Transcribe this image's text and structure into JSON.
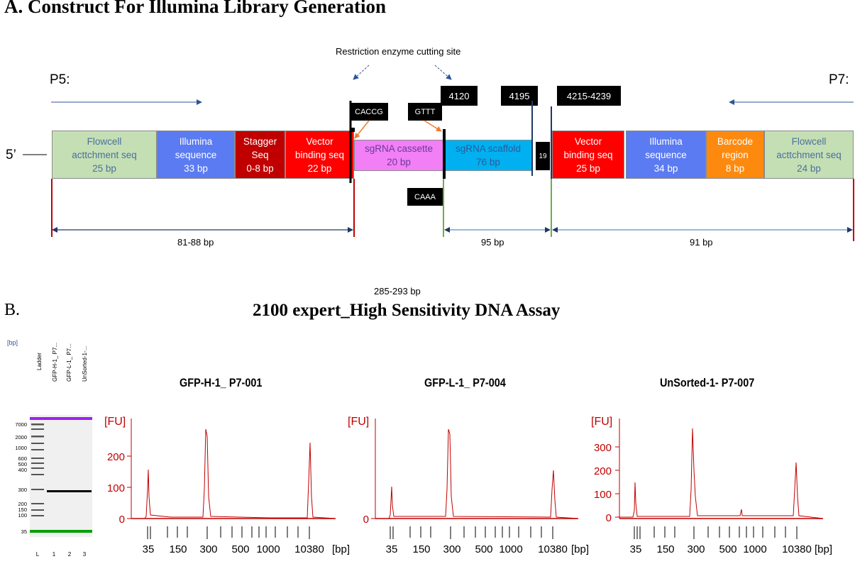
{
  "panelA": {
    "title": "A. Construct For Illumina Library Generation",
    "restriction_label": "Restriction enzyme cutting site",
    "p5": "P5:",
    "p7": "P7:",
    "five_prime": "5’",
    "segments": [
      {
        "l1": "Flowcell",
        "l2": "acttchment seq",
        "l3": "25 bp",
        "color": "#c5dfb4",
        "text": "#4a6fa0"
      },
      {
        "l1": "Illumina",
        "l2": "sequence",
        "l3": "33 bp",
        "color": "#5b7bf2",
        "text": "#ffffff"
      },
      {
        "l1": "Stagger",
        "l2": "Seq",
        "l3": "0-8 bp",
        "color": "#c00000",
        "text": "#ffffff"
      },
      {
        "l1": "Vector",
        "l2": "binding seq",
        "l3": "22 bp",
        "color": "#fe0000",
        "text": "#ffffff"
      },
      {
        "l1": "sgRNA cassette",
        "l2": "20 bp",
        "l3": "",
        "color": "#f27ff5",
        "text": "#6a3b9a"
      },
      {
        "l1": "sgRNA scaffold",
        "l2": "76 bp",
        "l3": "",
        "color": "#00b0f0",
        "text": "#2e5a9a"
      },
      {
        "l1": "Vector",
        "l2": "binding seq",
        "l3": "25 bp",
        "color": "#fe0000",
        "text": "#ffffff"
      },
      {
        "l1": "Illumina",
        "l2": "sequence",
        "l3": "34 bp",
        "color": "#5b7bf2",
        "text": "#ffffff"
      },
      {
        "l1": "Barcode",
        "l2": "region",
        "l3": "8 bp",
        "color": "#fd8a0f",
        "text": "#ffffff"
      },
      {
        "l1": "Flowcell",
        "l2": "acttchment seq",
        "l3": "24 bp",
        "color": "#c5dfb4",
        "text": "#4a6fa0"
      }
    ],
    "labels": {
      "caccg": "CACCG",
      "gttt": "GTTT",
      "caaa": "CAAA",
      "pos4120": "4120",
      "pos4195": "4195",
      "pos4215": "4215-4239",
      "n19": "19"
    },
    "dims": {
      "d1": "81-88 bp",
      "d2": "95 bp",
      "d3": "91 bp",
      "total": "285-293 bp"
    }
  },
  "panelB": {
    "label": "B.",
    "title": "2100 expert_High Sensitivity DNA Assay",
    "gel": {
      "unit": "[bp]",
      "lanes": [
        "Ladder",
        "GFP-H-1_ P7...",
        "GFP-L-1_ P7...",
        "UnSorted-1-..."
      ],
      "lane_numbers": [
        "L",
        "1",
        "2",
        "3"
      ],
      "ladder_labels": [
        "7000",
        "2000",
        "1000",
        "600",
        "500",
        "400",
        "300",
        "200",
        "150",
        "100",
        "35"
      ]
    },
    "electropherograms": [
      {
        "title": "GFP-H-1_ P7-001",
        "fu_label": "[FU]",
        "bp_label": "[bp]",
        "y_ticks": [
          "200",
          "100",
          "0"
        ],
        "x_ticks": [
          "35",
          "150",
          "300",
          "500",
          "1000",
          "10380"
        ]
      },
      {
        "title": "GFP-L-1_ P7-004",
        "fu_label": "[FU]",
        "bp_label": "[bp]",
        "y_ticks": [
          "0"
        ],
        "x_ticks": [
          "35",
          "150",
          "300",
          "500",
          "1000",
          "10380"
        ]
      },
      {
        "title": "UnSorted-1- P7-007",
        "fu_label": "[FU]",
        "bp_label": "[bp]",
        "y_ticks": [
          "300",
          "200",
          "100",
          "0"
        ],
        "x_ticks": [
          "35",
          "150",
          "300",
          "500",
          "1000",
          "10380"
        ]
      }
    ]
  }
}
